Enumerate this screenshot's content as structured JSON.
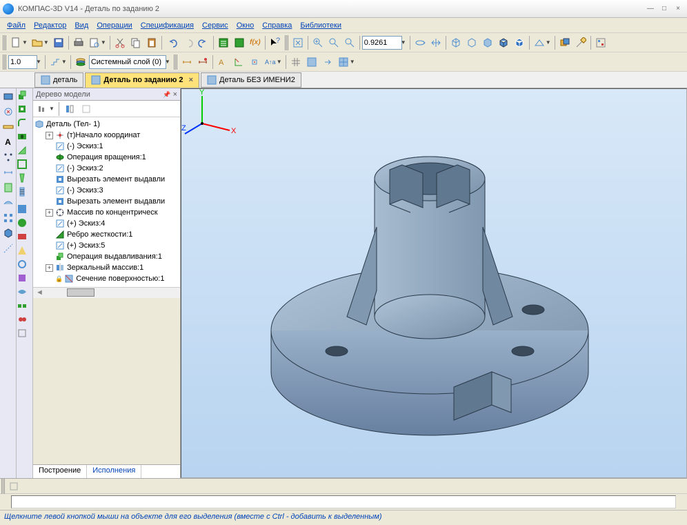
{
  "window": {
    "title": "КОМПАС-3D V14 - Деталь по заданию 2"
  },
  "menu": {
    "items": [
      "Файл",
      "Редактор",
      "Вид",
      "Операции",
      "Спецификация",
      "Сервис",
      "Окно",
      "Справка",
      "Библиотеки"
    ]
  },
  "toolbars": {
    "zoom_value": "0.9261",
    "scale_value": "1.0",
    "layer_value": "Системный слой (0)"
  },
  "doc_tabs": {
    "items": [
      {
        "label": "деталь",
        "active": false
      },
      {
        "label": "Деталь по заданию 2",
        "active": true
      },
      {
        "label": "Деталь БЕЗ ИМЕНИ2",
        "active": false
      }
    ]
  },
  "tree": {
    "title": "Дерево модели",
    "root": "Деталь (Тел- 1)",
    "nodes": [
      {
        "icon": "origin",
        "label": "(т)Начало координат",
        "expand": true
      },
      {
        "icon": "sketch",
        "label": "(-) Эскиз:1",
        "expand": false
      },
      {
        "icon": "revolve",
        "label": "Операция вращения:1",
        "expand": false
      },
      {
        "icon": "sketch",
        "label": "(-) Эскиз:2",
        "expand": false
      },
      {
        "icon": "cut",
        "label": "Вырезать элемент выдавли",
        "expand": false
      },
      {
        "icon": "sketch",
        "label": "(-) Эскиз:3",
        "expand": false
      },
      {
        "icon": "cut",
        "label": "Вырезать элемент выдавли",
        "expand": false
      },
      {
        "icon": "array",
        "label": "Массив по концентрическ",
        "expand": true
      },
      {
        "icon": "sketch",
        "label": "(+) Эскиз:4",
        "expand": false
      },
      {
        "icon": "rib",
        "label": "Ребро жесткости:1",
        "expand": false
      },
      {
        "icon": "sketch",
        "label": "(+) Эскиз:5",
        "expand": false
      },
      {
        "icon": "extrude",
        "label": "Операция выдавливания:1",
        "expand": false
      },
      {
        "icon": "mirror",
        "label": "Зеркальный массив:1",
        "expand": true
      },
      {
        "icon": "section",
        "label": "Сечение поверхностью:1",
        "expand": false,
        "locked": true
      }
    ],
    "bottom_tabs": {
      "build": "Построение",
      "exec": "Исполнения"
    }
  },
  "viewport": {
    "bg_top": "#d8e8f8",
    "bg_bottom": "#b8d4f0",
    "model_color": "#8da4b8",
    "edge_color": "#2a3a4a",
    "axes": {
      "x": "X",
      "y": "Y",
      "z": "Z",
      "x_color": "#ff0000",
      "y_color": "#00cc00",
      "z_color": "#0033ff"
    }
  },
  "status": {
    "text": "Щелкните левой кнопкой мыши на объекте для его выделения (вместе с Ctrl - добавить к выделенным)"
  },
  "icons": {
    "colors": {
      "new": "#fff",
      "open": "#f0d070",
      "save": "#5080d0",
      "print": "#888",
      "cut": "#d04040",
      "copy": "#fff",
      "paste": "#f0d070",
      "undo": "#4070c0",
      "redo": "#4070c0",
      "sheet": "#30a030",
      "fx": "#d08020",
      "help": "#4070c0",
      "zoom": "#5090d0",
      "box": "#5090d0",
      "mesh": "#808080"
    }
  }
}
